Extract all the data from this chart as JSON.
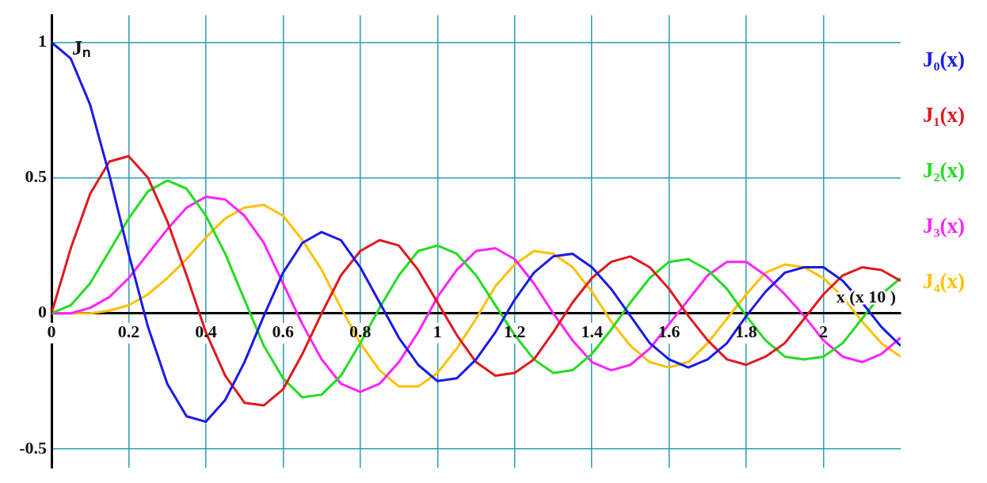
{
  "chart_data": {
    "type": "line",
    "xlabel": "x (x 10 )",
    "ylabel": "Jₙ",
    "x": [
      0,
      0.05,
      0.1,
      0.15,
      0.2,
      0.25,
      0.3,
      0.35,
      0.4,
      0.45,
      0.5,
      0.55,
      0.6,
      0.65,
      0.7,
      0.75,
      0.8,
      0.85,
      0.9,
      0.95,
      1,
      1.05,
      1.1,
      1.15,
      1.2,
      1.25,
      1.3,
      1.35,
      1.4,
      1.45,
      1.5,
      1.55,
      1.6,
      1.65,
      1.7,
      1.75,
      1.8,
      1.85,
      1.9,
      1.95,
      2,
      2.05,
      2.1,
      2.15,
      2.2
    ],
    "xlim": [
      0,
      2.2
    ],
    "xticks": [
      0,
      0.2,
      0.4,
      0.6,
      0.8,
      1,
      1.2,
      1.4,
      1.6,
      1.8,
      2
    ],
    "ylim": [
      -0.57,
      1.1
    ],
    "yticks": [
      -0.5,
      0,
      0.5,
      1
    ],
    "grid": true,
    "legend": "right",
    "series": [
      {
        "name": "J₀(x)",
        "color": "#1a1ae6",
        "values": [
          1,
          0.94,
          0.77,
          0.51,
          0.22,
          -0.05,
          -0.26,
          -0.38,
          -0.4,
          -0.32,
          -0.18,
          -0.01,
          0.15,
          0.26,
          0.3,
          0.27,
          0.17,
          0.04,
          -0.09,
          -0.19,
          -0.25,
          -0.24,
          -0.17,
          -0.07,
          0.05,
          0.15,
          0.21,
          0.22,
          0.17,
          0.09,
          -0.01,
          -0.11,
          -0.17,
          -0.2,
          -0.17,
          -0.11,
          -0.01,
          0.08,
          0.15,
          0.17,
          0.17,
          0.12,
          0.04,
          -0.05,
          -0.12
        ]
      },
      {
        "name": "J₁(x)",
        "color": "#e0181c",
        "values": [
          0,
          0.24,
          0.44,
          0.56,
          0.58,
          0.5,
          0.34,
          0.14,
          -0.07,
          -0.23,
          -0.33,
          -0.34,
          -0.28,
          -0.15,
          0,
          0.14,
          0.23,
          0.27,
          0.25,
          0.16,
          0.04,
          -0.08,
          -0.18,
          -0.23,
          -0.22,
          -0.17,
          -0.07,
          0.04,
          0.13,
          0.19,
          0.21,
          0.17,
          0.09,
          -0.01,
          -0.1,
          -0.17,
          -0.19,
          -0.16,
          -0.11,
          -0.02,
          0.07,
          0.14,
          0.17,
          0.16,
          0.12
        ]
      },
      {
        "name": "J₂(x)",
        "color": "#22dd22",
        "values": [
          0,
          0.03,
          0.11,
          0.23,
          0.35,
          0.45,
          0.49,
          0.46,
          0.36,
          0.22,
          0.05,
          -0.12,
          -0.24,
          -0.31,
          -0.3,
          -0.23,
          -0.11,
          0.02,
          0.14,
          0.23,
          0.25,
          0.22,
          0.14,
          0.03,
          -0.08,
          -0.17,
          -0.22,
          -0.21,
          -0.15,
          -0.06,
          0.04,
          0.13,
          0.19,
          0.2,
          0.16,
          0.09,
          -0.01,
          -0.1,
          -0.16,
          -0.17,
          -0.16,
          -0.11,
          -0.02,
          0.07,
          0.13
        ]
      },
      {
        "name": "J₃(x)",
        "color": "#ff22ff",
        "values": [
          0,
          0,
          0.02,
          0.06,
          0.13,
          0.22,
          0.31,
          0.39,
          0.43,
          0.42,
          0.36,
          0.26,
          0.11,
          -0.04,
          -0.17,
          -0.26,
          -0.29,
          -0.26,
          -0.18,
          -0.07,
          0.06,
          0.16,
          0.23,
          0.24,
          0.2,
          0.11,
          0,
          -0.1,
          -0.18,
          -0.21,
          -0.19,
          -0.13,
          -0.04,
          0.05,
          0.14,
          0.19,
          0.19,
          0.14,
          0.07,
          -0.01,
          -0.1,
          -0.16,
          -0.18,
          -0.15,
          -0.09
        ]
      },
      {
        "name": "J₄(x)",
        "color": "#ffc000",
        "values": [
          0,
          0,
          0,
          0.01,
          0.03,
          0.07,
          0.13,
          0.2,
          0.28,
          0.35,
          0.39,
          0.4,
          0.36,
          0.27,
          0.16,
          0.02,
          -0.11,
          -0.21,
          -0.27,
          -0.27,
          -0.22,
          -0.13,
          -0.02,
          0.1,
          0.18,
          0.23,
          0.22,
          0.17,
          0.08,
          -0.03,
          -0.12,
          -0.18,
          -0.2,
          -0.18,
          -0.11,
          -0.02,
          0.07,
          0.15,
          0.18,
          0.17,
          0.13,
          0.06,
          -0.03,
          -0.11,
          -0.16
        ]
      }
    ]
  }
}
